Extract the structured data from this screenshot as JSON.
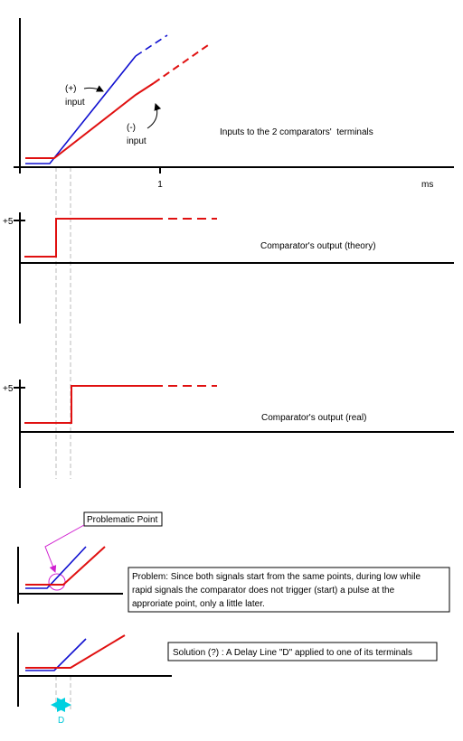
{
  "panel1": {
    "plus_label": "(+)",
    "plus_input": "input",
    "minus_label": "(-)",
    "minus_input": "input",
    "caption": "Inputs to the 2 comparators'  terminals",
    "tick": "1",
    "unit": "ms"
  },
  "panel2": {
    "level": "+5",
    "caption": "Comparator's output (theory)"
  },
  "panel3": {
    "level": "+5",
    "caption": "Comparator's output (real)"
  },
  "panel4": {
    "callout": "Problematic Point",
    "problem": [
      "Problem: Since both signals start from the same points, during low while",
      "rapid signals the comparator does not trigger (start) a pulse at the",
      "approriate point, only a little later."
    ]
  },
  "panel5": {
    "solution": "Solution (?) : A Delay Line \"D\" applied to one of its terminals",
    "delay": "D"
  }
}
